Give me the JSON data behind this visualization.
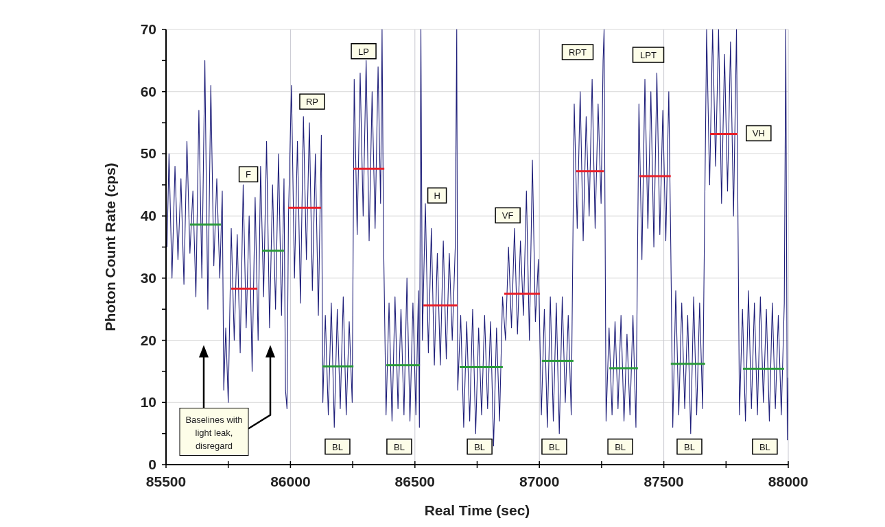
{
  "chart_data": {
    "type": "line",
    "xlabel": "Real Time (sec)",
    "ylabel": "Photon Count Rate (cps)",
    "xlim": [
      85500,
      88000
    ],
    "ylim": [
      0,
      70
    ],
    "xticks": [
      85500,
      {
        "value": 85750,
        "label": null
      },
      86000,
      {
        "value": 86250,
        "label": null
      },
      86500,
      {
        "value": 86750,
        "label": null
      },
      87000,
      {
        "value": 87250,
        "label": null
      },
      87500,
      {
        "value": 87750,
        "label": null
      },
      88000
    ],
    "yticks": [
      0,
      {
        "value": 5,
        "label": null
      },
      10,
      {
        "value": 15,
        "label": null
      },
      20,
      {
        "value": 25,
        "label": null
      },
      30,
      {
        "value": 35,
        "label": null
      },
      40,
      {
        "value": 45,
        "label": null
      },
      50,
      {
        "value": 55,
        "label": null
      },
      60,
      {
        "value": 65,
        "label": null
      },
      70
    ],
    "grid": true,
    "series": [
      {
        "color": "#1f1f7a",
        "x": [
          85504,
          85512,
          85524,
          85536,
          85548,
          85560,
          85572,
          85584,
          85596,
          85608,
          85620,
          85632,
          85644,
          85656,
          85668,
          85680,
          85692,
          85704,
          85716,
          85726,
          85732,
          85740,
          85750,
          85762,
          85774,
          85786,
          85798,
          85810,
          85822,
          85834,
          85846,
          85858,
          85870,
          85880,
          85892,
          85904,
          85916,
          85928,
          85940,
          85952,
          85964,
          85974,
          85980,
          85986,
          85992,
          86004,
          86016,
          86028,
          86040,
          86052,
          86064,
          86076,
          86088,
          86100,
          86112,
          86124,
          86130,
          86140,
          86152,
          86164,
          86176,
          86188,
          86200,
          86212,
          86224,
          86236,
          86248,
          86256,
          86268,
          86280,
          86292,
          86304,
          86316,
          86328,
          86340,
          86352,
          86362,
          86368,
          86374,
          86384,
          86396,
          86408,
          86420,
          86432,
          86444,
          86456,
          86468,
          86480,
          86492,
          86504,
          86514,
          86518,
          86524,
          86530,
          86542,
          86554,
          86566,
          86578,
          86590,
          86602,
          86614,
          86626,
          86638,
          86650,
          86662,
          86668,
          86672,
          86684,
          86696,
          86708,
          86720,
          86732,
          86744,
          86756,
          86768,
          86780,
          86792,
          86804,
          86816,
          86828,
          86840,
          86852,
          86864,
          86876,
          86888,
          86900,
          86912,
          86924,
          86936,
          86948,
          86960,
          86972,
          86984,
          86996,
          87008,
          87020,
          87032,
          87044,
          87056,
          87068,
          87080,
          87092,
          87104,
          87116,
          87128,
          87140,
          87152,
          87164,
          87176,
          87188,
          87200,
          87212,
          87224,
          87236,
          87248,
          87256,
          87260,
          87268,
          87280,
          87292,
          87304,
          87316,
          87328,
          87340,
          87352,
          87364,
          87376,
          87388,
          87400,
          87412,
          87424,
          87436,
          87448,
          87460,
          87472,
          87484,
          87496,
          87508,
          87520,
          87528,
          87536,
          87548,
          87560,
          87572,
          87584,
          87596,
          87608,
          87620,
          87632,
          87644,
          87656,
          87664,
          87672,
          87684,
          87696,
          87708,
          87720,
          87732,
          87744,
          87756,
          87768,
          87780,
          87792,
          87804,
          87816,
          87828,
          87840,
          87852,
          87864,
          87876,
          87888,
          87900,
          87912,
          87924,
          87936,
          87948,
          87960,
          87972,
          87984,
          87990,
          87996,
          88000
        ],
        "values": [
          35,
          50,
          30,
          48,
          33,
          46,
          29,
          52,
          34,
          44,
          27,
          57,
          30,
          65,
          25,
          61,
          32,
          46,
          30,
          44,
          12,
          22,
          10,
          38,
          20,
          37,
          18,
          45,
          22,
          40,
          15,
          43,
          20,
          48,
          27,
          52,
          22,
          45,
          25,
          50,
          24,
          46,
          12,
          9,
          40,
          61,
          30,
          52,
          26,
          56,
          33,
          55,
          28,
          50,
          24,
          53,
          10,
          24,
          8,
          26,
          6,
          25,
          9,
          27,
          8,
          23,
          10,
          62,
          37,
          63,
          40,
          65,
          36,
          60,
          38,
          64,
          42,
          70,
          36,
          8,
          26,
          7,
          27,
          9,
          25,
          8,
          30,
          7,
          26,
          8,
          28,
          6,
          70,
          20,
          42,
          18,
          38,
          16,
          34,
          16,
          36,
          17,
          34,
          20,
          35,
          70,
          12,
          24,
          6,
          23,
          7,
          25,
          5,
          22,
          8,
          24,
          9,
          23,
          3,
          22,
          7,
          27,
          20,
          35,
          22,
          38,
          21,
          36,
          24,
          44,
          20,
          49,
          23,
          33,
          8,
          25,
          6,
          27,
          7,
          26,
          5,
          27,
          10,
          24,
          8,
          58,
          38,
          60,
          36,
          56,
          40,
          62,
          38,
          58,
          42,
          65,
          70,
          7,
          22,
          8,
          23,
          9,
          24,
          7,
          21,
          8,
          24,
          6,
          58,
          33,
          62,
          38,
          60,
          35,
          63,
          37,
          57,
          36,
          60,
          35,
          6,
          28,
          8,
          26,
          9,
          24,
          5,
          27,
          8,
          26,
          9,
          40,
          70,
          45,
          70,
          48,
          70,
          42,
          66,
          44,
          68,
          40,
          70,
          8,
          25,
          7,
          28,
          9,
          26,
          8,
          27,
          10,
          25,
          7,
          26,
          9,
          24,
          8,
          26,
          70,
          4,
          14
        ]
      },
      {
        "color": "#e8202a",
        "x": [
          85762,
          85867
        ],
        "values": [
          28.3,
          28.3
        ]
      },
      {
        "color": "#e8202a",
        "x": [
          85991,
          86123
        ],
        "values": [
          41.3,
          41.3
        ]
      },
      {
        "color": "#e8202a",
        "x": [
          86253,
          86377
        ],
        "values": [
          47.6,
          47.6
        ]
      },
      {
        "color": "#e8202a",
        "x": [
          86534,
          86671
        ],
        "values": [
          25.6,
          25.6
        ]
      },
      {
        "color": "#e8202a",
        "x": [
          86859,
          87002
        ],
        "values": [
          27.5,
          27.5
        ]
      },
      {
        "color": "#e8202a",
        "x": [
          87148,
          87259
        ],
        "values": [
          47.2,
          47.2
        ]
      },
      {
        "color": "#e8202a",
        "x": [
          87402,
          87528
        ],
        "values": [
          46.4,
          46.4
        ]
      },
      {
        "color": "#e8202a",
        "x": [
          87686,
          87796
        ],
        "values": [
          53.2,
          53.2
        ]
      },
      {
        "color": "#2a9a3a",
        "x": [
          85596,
          85721
        ],
        "values": [
          38.6,
          38.6
        ]
      },
      {
        "color": "#2a9a3a",
        "x": [
          85886,
          85974
        ],
        "values": [
          34.4,
          34.4
        ]
      },
      {
        "color": "#2a9a3a",
        "x": [
          86128,
          86253
        ],
        "values": [
          15.8,
          15.8
        ]
      },
      {
        "color": "#2a9a3a",
        "x": [
          86385,
          86520
        ],
        "values": [
          16,
          16
        ]
      },
      {
        "color": "#2a9a3a",
        "x": [
          86680,
          86853
        ],
        "values": [
          15.7,
          15.7
        ]
      },
      {
        "color": "#2a9a3a",
        "x": [
          87010,
          87137
        ],
        "values": [
          16.7,
          16.7
        ]
      },
      {
        "color": "#2a9a3a",
        "x": [
          87281,
          87396
        ],
        "values": [
          15.5,
          15.5
        ]
      },
      {
        "color": "#2a9a3a",
        "x": [
          87528,
          87666
        ],
        "values": [
          16.2,
          16.2
        ]
      },
      {
        "color": "#2a9a3a",
        "x": [
          87818,
          87983
        ],
        "values": [
          15.4,
          15.4
        ]
      }
    ],
    "annotations": [
      {
        "text": "F",
        "x": 85831,
        "y": 46.7
      },
      {
        "text": "RP",
        "x": 86087,
        "y": 58.4
      },
      {
        "text": "LP",
        "x": 86294,
        "y": 66.5
      },
      {
        "text": "H",
        "x": 86589,
        "y": 43.3
      },
      {
        "text": "VF",
        "x": 86873,
        "y": 40.1
      },
      "RPT",
      "LPT",
      {
        "text": "VH",
        "x": 87881,
        "y": 53.3
      },
      {
        "text": "BL",
        "x": 86189,
        "y": 2.9
      },
      {
        "text": "BL",
        "x": 86437,
        "y": 2.9
      },
      {
        "text": "BL",
        "x": 86760,
        "y": 2.9
      },
      {
        "text": "BL",
        "x": 87060,
        "y": 2.9
      },
      {
        "text": "BL",
        "x": 87325,
        "y": 2.9
      },
      {
        "text": "BL",
        "x": 87603,
        "y": 2.9
      },
      {
        "text": "BL",
        "x": 87906,
        "y": 2.9
      },
      "Baselines with light leak, disregard"
    ]
  }
}
